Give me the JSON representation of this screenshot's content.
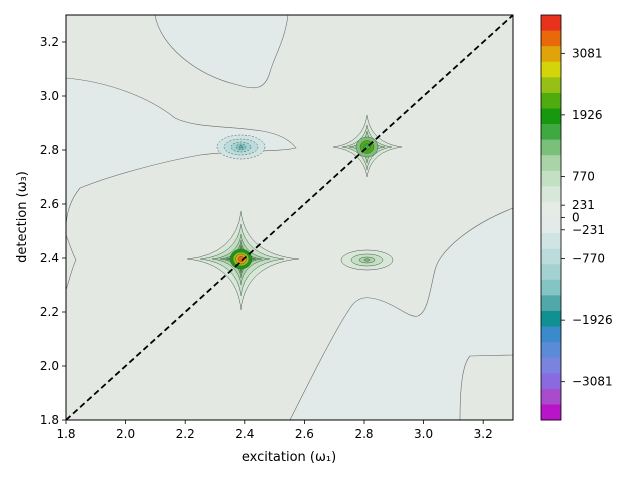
{
  "chart_data": {
    "type": "contour",
    "title": "",
    "xlabel": "excitation (ω₁)",
    "ylabel": "detection (ω₃)",
    "xlim": [
      1.8,
      3.3
    ],
    "ylim": [
      1.8,
      3.3
    ],
    "x_ticks": [
      "1.8",
      "2.0",
      "2.2",
      "2.4",
      "2.6",
      "2.8",
      "3.0",
      "3.2"
    ],
    "y_ticks": [
      "1.8",
      "2.0",
      "2.2",
      "2.4",
      "2.6",
      "2.8",
      "3.0",
      "3.2"
    ],
    "x_tick_values": [
      1.8,
      2.0,
      2.2,
      2.4,
      2.6,
      2.8,
      3.0,
      3.2
    ],
    "y_tick_values": [
      1.8,
      2.0,
      2.2,
      2.4,
      2.6,
      2.8,
      3.0,
      3.2
    ],
    "diagonal": {
      "style": "dashed",
      "color": "#000000",
      "from": [
        1.8,
        1.8
      ],
      "to": [
        3.3,
        3.3
      ]
    },
    "peaks": [
      {
        "x": 2.39,
        "y": 2.39,
        "value": 3300,
        "sign": "positive"
      },
      {
        "x": 2.81,
        "y": 2.81,
        "value": 1300,
        "sign": "positive"
      },
      {
        "x": 2.81,
        "y": 2.39,
        "value": 300,
        "sign": "positive"
      },
      {
        "x": 2.39,
        "y": 2.81,
        "value": -800,
        "sign": "negative"
      }
    ],
    "colorbar": {
      "tick_labels": [
        "3081",
        "1926",
        "770",
        "231",
        "0",
        "−231",
        "−770",
        "−1926",
        "−3081"
      ],
      "tick_values": [
        3081,
        1926,
        770,
        231,
        0,
        -231,
        -770,
        -1926,
        -3081
      ],
      "range": [
        -3800,
        3800
      ],
      "bands": [
        "#e8321e",
        "#e8680a",
        "#e0a40a",
        "#d4d40a",
        "#96c016",
        "#50ac0e",
        "#18980e",
        "#40a840",
        "#7ac07a",
        "#a8d4a8",
        "#c4e0c4",
        "#d8e8d8",
        "#e5ebe5",
        "#e3eaea",
        "#d0e4e4",
        "#bcdcdc",
        "#a4d2d2",
        "#84c4c4",
        "#50a8a8",
        "#109090",
        "#3a8acc",
        "#5a8ad8",
        "#7a84e0",
        "#8a6ae0",
        "#a84ccc",
        "#b814c8"
      ]
    }
  },
  "colors": {
    "background_pos": "#e3e8e2",
    "background_neg": "#e2e9e9",
    "contour_line": "#6c6c6c",
    "diagonal": "#000000"
  }
}
